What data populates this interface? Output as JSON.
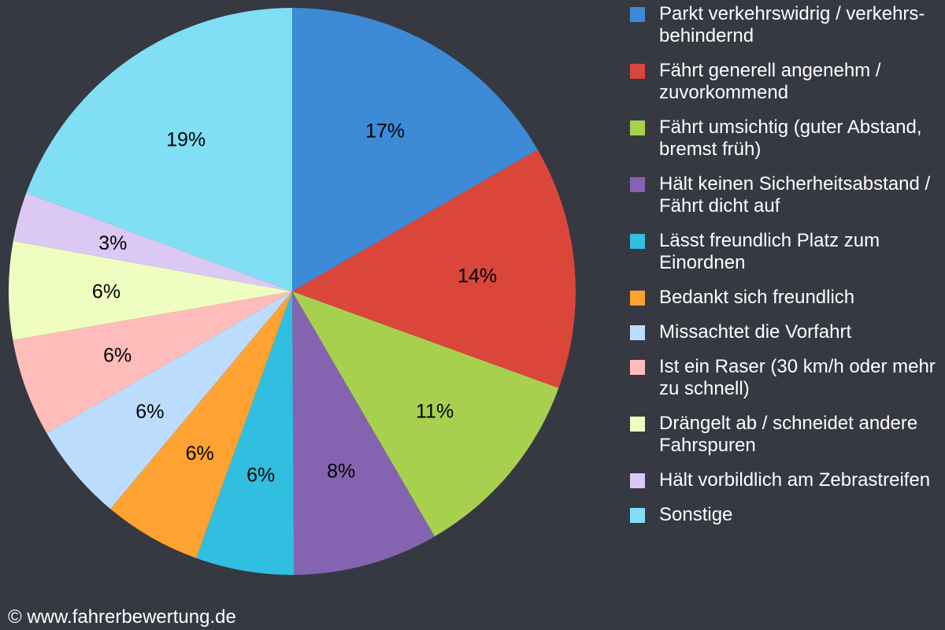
{
  "chart_data": {
    "type": "pie",
    "start": "top",
    "direction": "clockwise",
    "categories": [
      "Parkt verkehrswidrig / verkehrs-behindernd",
      "Fährt generell angenehm / zuvorkommend",
      "Fährt umsichtig (guter Abstand, bremst früh)",
      "Hält keinen Sicherheitsabstand / Fährt dicht auf",
      "Lässt freundlich Platz zum Einordnen",
      "Bedankt sich freundlich",
      "Missachtet die Vorfahrt",
      "Ist ein Raser (30 km/h oder mehr zu schnell)",
      "Drängelt ab / schneidet andere Fahrspuren",
      "Hält vorbildlich am Zebrastreifen",
      "Sonstige"
    ],
    "values": [
      16.7,
      13.9,
      11.1,
      8.3,
      5.6,
      5.6,
      5.6,
      5.6,
      5.6,
      2.8,
      19.4
    ],
    "data_labels": [
      "17%",
      "14%",
      "11%",
      "8%",
      "6%",
      "6%",
      "6%",
      "6%",
      "6%",
      "3%",
      "19%"
    ],
    "colors": [
      "#3d8ad6",
      "#db463b",
      "#a8d04f",
      "#8464b0",
      "#30bfe0",
      "#fea232",
      "#bcdcfd",
      "#febcba",
      "#f0fdc0",
      "#dbc9f3",
      "#80dff5"
    ],
    "legend_position": "right"
  },
  "background_color": "#363842",
  "copyright": "© www.fahrerbewertung.de"
}
